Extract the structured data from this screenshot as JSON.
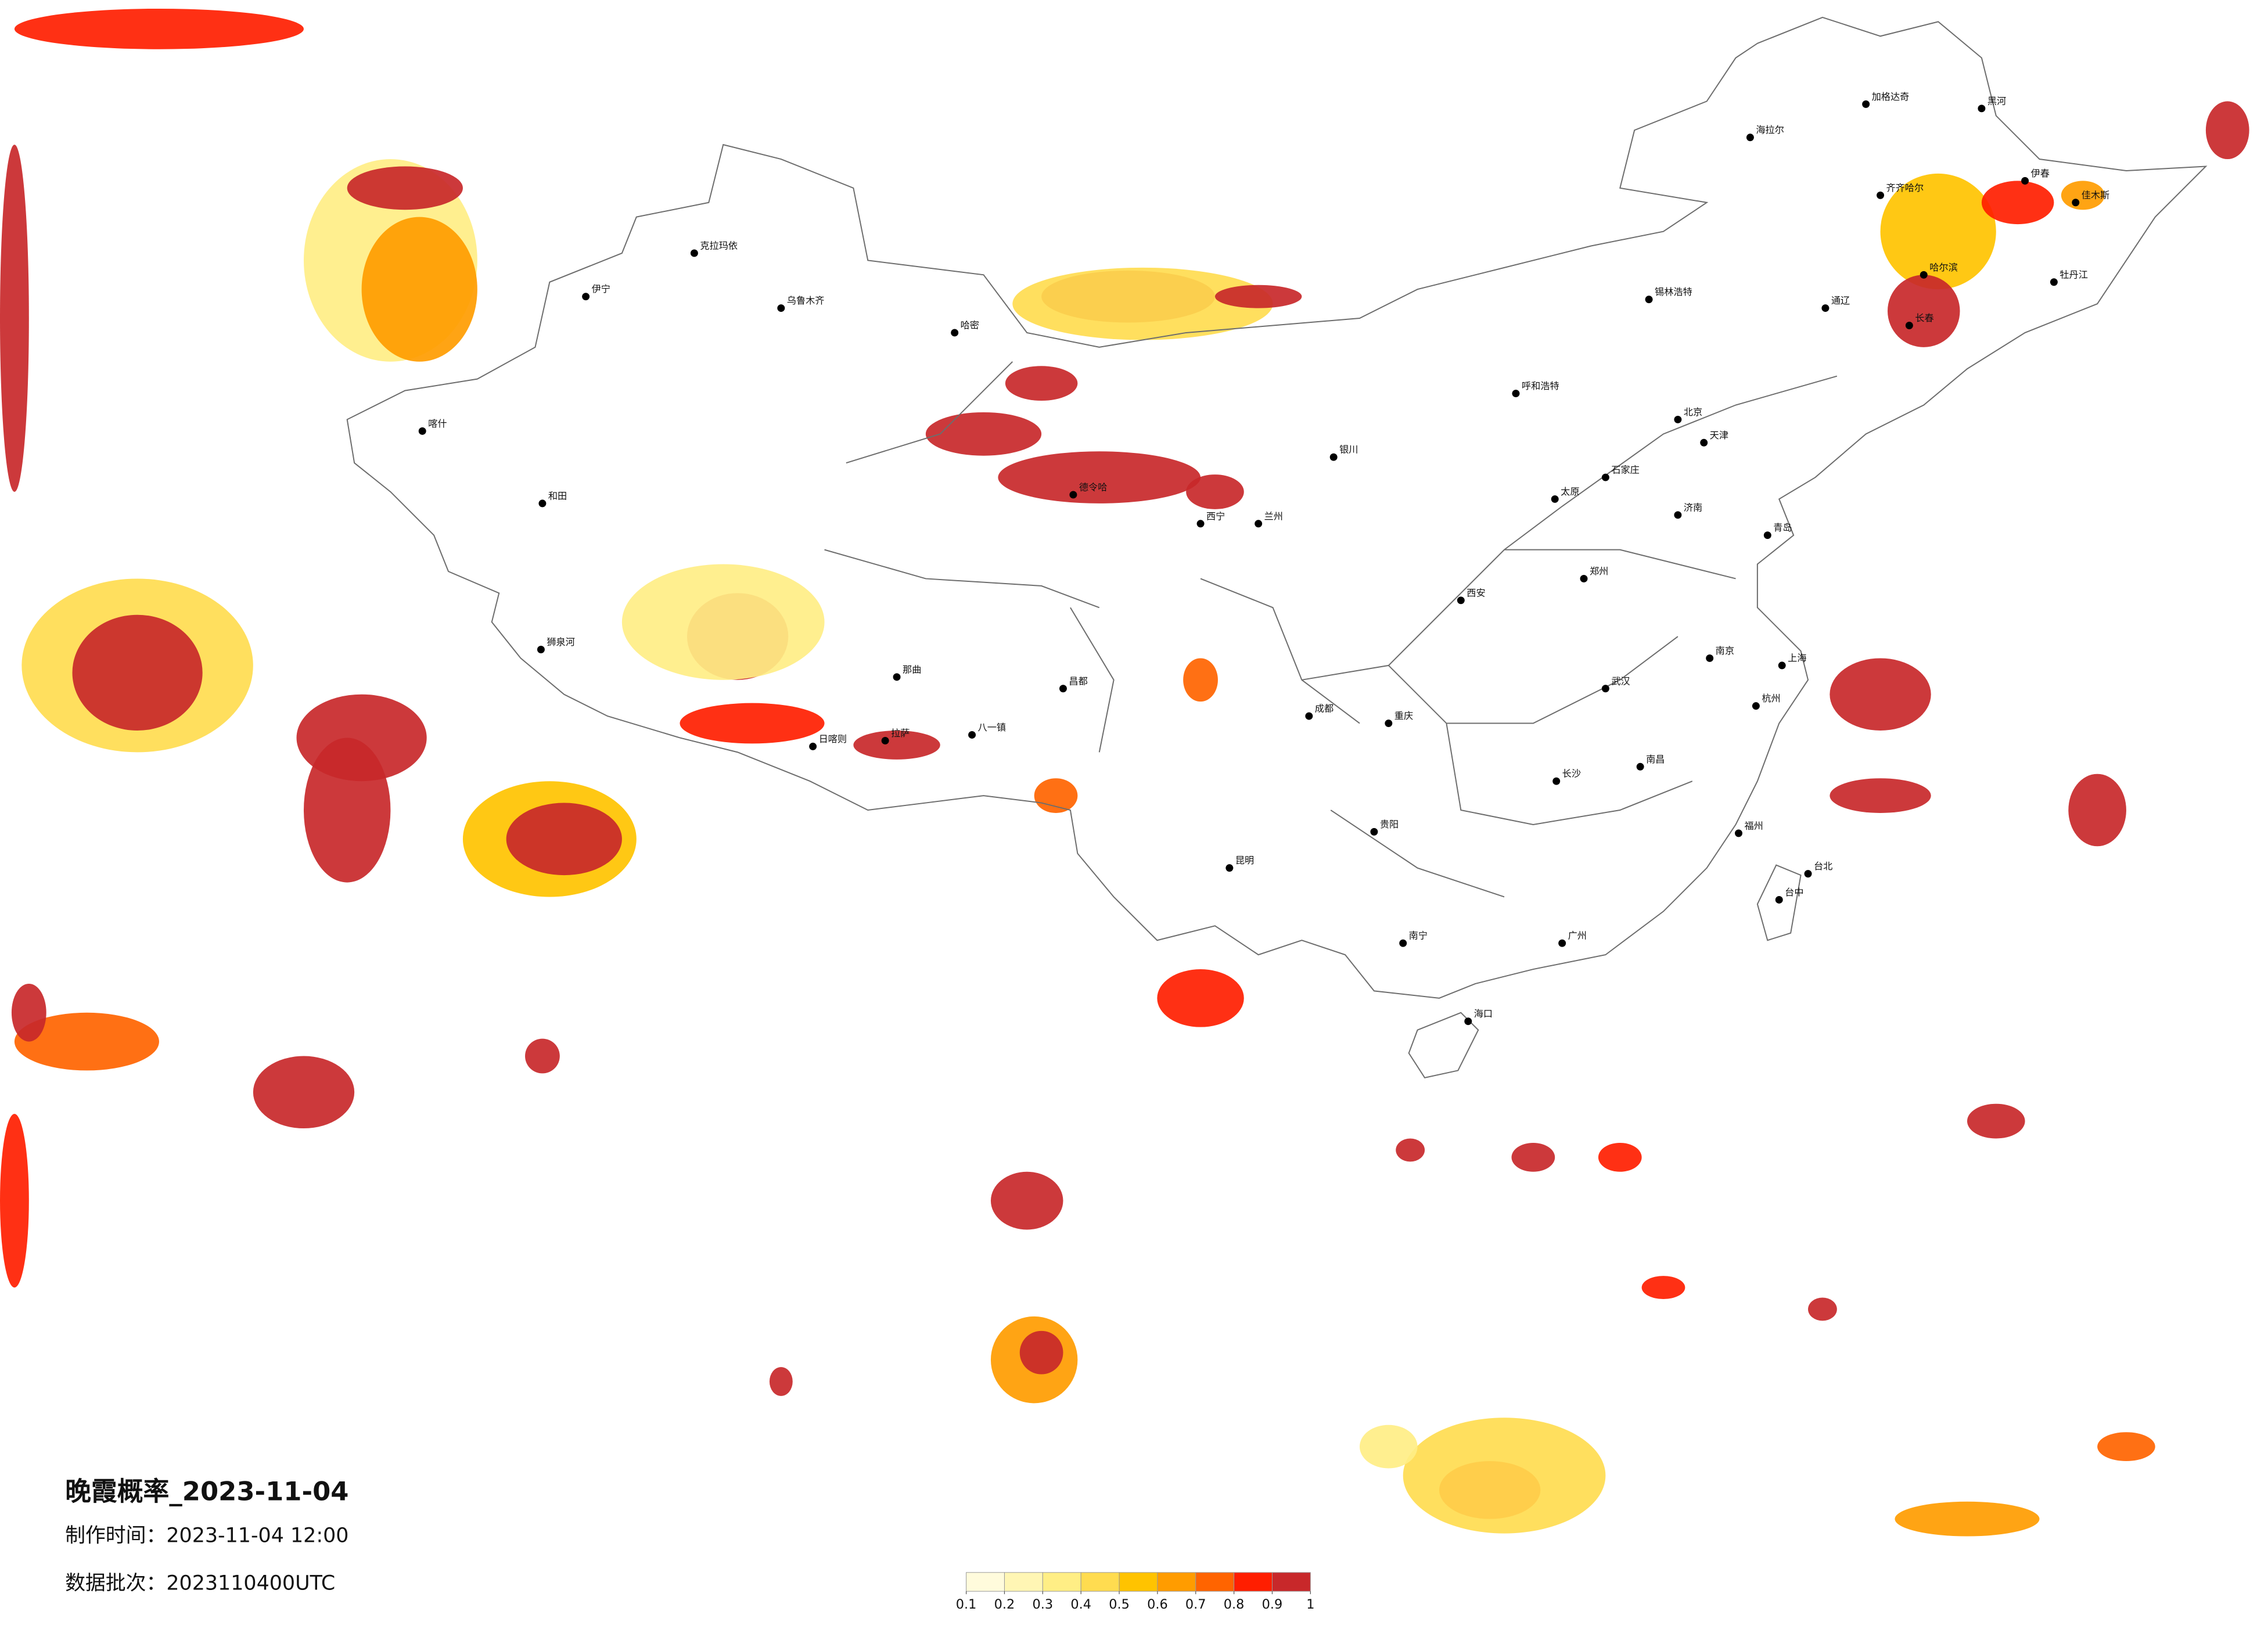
{
  "map": {
    "title": "晚霞概率_2023-11-04",
    "made_time": "制作时间：2023-11-04 12:00",
    "batch": "数据批次：2023110400UTC",
    "cities": [
      "加格达奇",
      "黑河",
      "海拉尔",
      "齐齐哈尔",
      "伊春",
      "佳木斯",
      "哈尔滨",
      "牡丹江",
      "长春",
      "通辽",
      "锡林浩特",
      "呼和浩特",
      "北京",
      "天津",
      "石家庄",
      "太原",
      "济南",
      "青岛",
      "郑州",
      "西安",
      "兰州",
      "西宁",
      "银川",
      "南京",
      "上海",
      "杭州",
      "武汉",
      "长沙",
      "南昌",
      "福州",
      "重庆",
      "成都",
      "贵阳",
      "昆明",
      "南宁",
      "广州",
      "海口",
      "台北",
      "台中",
      "乌鲁木齐",
      "克拉玛依",
      "伊宁",
      "喀什",
      "和田",
      "哈密",
      "拉萨",
      "日喀则",
      "八一镇",
      "狮泉河",
      "那曲",
      "昌都",
      "德令哈"
    ]
  },
  "legend": {
    "ticks": [
      0.1,
      0.2,
      0.3,
      0.4,
      0.5,
      0.6,
      0.7,
      0.8,
      0.9,
      1
    ],
    "colors": [
      "#fffbdc",
      "#fff6b4",
      "#ffee85",
      "#ffdc50",
      "#ffc300",
      "#ff9c00",
      "#ff6400",
      "#ff1e00",
      "#c8282a"
    ]
  }
}
